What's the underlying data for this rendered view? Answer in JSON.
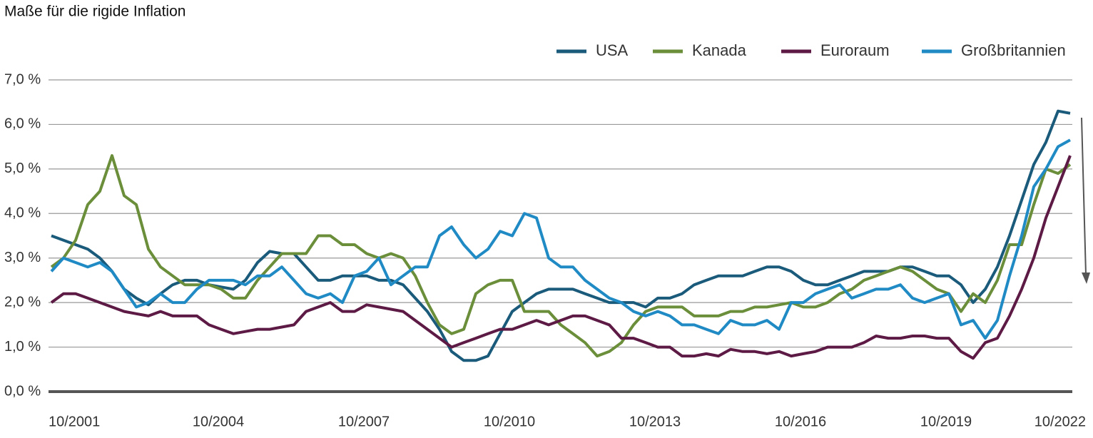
{
  "chart_data": {
    "type": "line",
    "title": "Maße für die rigide Inflation",
    "categories": [
      "10/2001",
      null,
      null,
      null,
      null,
      null,
      null,
      null,
      null,
      null,
      null,
      null,
      "10/2004",
      null,
      null,
      null,
      null,
      null,
      null,
      null,
      null,
      null,
      null,
      null,
      "10/2007",
      null,
      null,
      null,
      null,
      null,
      null,
      null,
      null,
      null,
      null,
      null,
      "10/2010",
      null,
      null,
      null,
      null,
      null,
      null,
      null,
      null,
      null,
      null,
      null,
      "10/2013",
      null,
      null,
      null,
      null,
      null,
      null,
      null,
      null,
      null,
      null,
      null,
      "10/2016",
      null,
      null,
      null,
      null,
      null,
      null,
      null,
      null,
      null,
      null,
      null,
      "10/2019",
      null,
      null,
      null,
      null,
      null,
      null,
      null,
      null,
      null,
      null,
      null,
      "10/2022"
    ],
    "ylim": [
      0,
      7
    ],
    "yticks": [
      {
        "value": 0,
        "label": "0,0 %"
      },
      {
        "value": 1,
        "label": "1,0 %"
      },
      {
        "value": 2,
        "label": "2,0 %"
      },
      {
        "value": 3,
        "label": "3,0 %"
      },
      {
        "value": 4,
        "label": "4,0 %"
      },
      {
        "value": 5,
        "label": "5,0 %"
      },
      {
        "value": 6,
        "label": "6,0 %"
      },
      {
        "value": 7,
        "label": "7,0 %"
      }
    ],
    "grid": true,
    "legend": "top-right",
    "series": [
      {
        "name": "USA",
        "color": "#1a5a7a",
        "values": [
          3.5,
          3.4,
          3.3,
          3.2,
          3.0,
          2.7,
          2.3,
          2.1,
          1.95,
          2.2,
          2.4,
          2.5,
          2.5,
          2.4,
          2.35,
          2.3,
          2.5,
          2.9,
          3.15,
          3.1,
          3.1,
          2.8,
          2.5,
          2.5,
          2.6,
          2.6,
          2.6,
          2.5,
          2.5,
          2.4,
          2.1,
          1.8,
          1.4,
          0.9,
          0.7,
          0.7,
          0.8,
          1.3,
          1.8,
          2.0,
          2.2,
          2.3,
          2.3,
          2.3,
          2.2,
          2.1,
          2.0,
          2.0,
          2.0,
          1.9,
          2.1,
          2.1,
          2.2,
          2.4,
          2.5,
          2.6,
          2.6,
          2.6,
          2.7,
          2.8,
          2.8,
          2.7,
          2.5,
          2.4,
          2.4,
          2.5,
          2.6,
          2.7,
          2.7,
          2.7,
          2.8,
          2.8,
          2.7,
          2.6,
          2.6,
          2.4,
          2.0,
          2.3,
          2.8,
          3.5,
          4.3,
          5.1,
          5.6,
          6.3,
          6.25
        ]
      },
      {
        "name": "Kanada",
        "color": "#6b8e3a",
        "values": [
          2.8,
          3.0,
          3.4,
          4.2,
          4.5,
          5.3,
          4.4,
          4.2,
          3.2,
          2.8,
          2.6,
          2.4,
          2.4,
          2.4,
          2.3,
          2.1,
          2.1,
          2.5,
          2.8,
          3.1,
          3.1,
          3.1,
          3.5,
          3.5,
          3.3,
          3.3,
          3.1,
          3.0,
          3.1,
          3.0,
          2.6,
          2.0,
          1.5,
          1.3,
          1.4,
          2.2,
          2.4,
          2.5,
          2.5,
          1.8,
          1.8,
          1.8,
          1.5,
          1.3,
          1.1,
          0.8,
          0.9,
          1.1,
          1.5,
          1.8,
          1.9,
          1.9,
          1.9,
          1.7,
          1.7,
          1.7,
          1.8,
          1.8,
          1.9,
          1.9,
          1.95,
          2.0,
          1.9,
          1.9,
          2.0,
          2.2,
          2.3,
          2.5,
          2.6,
          2.7,
          2.8,
          2.7,
          2.5,
          2.3,
          2.2,
          1.8,
          2.2,
          2.0,
          2.5,
          3.3,
          3.3,
          4.2,
          5.0,
          4.9,
          5.1
        ]
      },
      {
        "name": "Euroraum",
        "color": "#5c1a45",
        "values": [
          2.0,
          2.2,
          2.2,
          2.1,
          2.0,
          1.9,
          1.8,
          1.75,
          1.7,
          1.8,
          1.7,
          1.7,
          1.7,
          1.5,
          1.4,
          1.3,
          1.35,
          1.4,
          1.4,
          1.45,
          1.5,
          1.8,
          1.9,
          2.0,
          1.8,
          1.8,
          1.95,
          1.9,
          1.85,
          1.8,
          1.6,
          1.4,
          1.2,
          1.0,
          1.1,
          1.2,
          1.3,
          1.4,
          1.4,
          1.5,
          1.6,
          1.5,
          1.6,
          1.7,
          1.7,
          1.6,
          1.5,
          1.2,
          1.2,
          1.1,
          1.0,
          1.0,
          0.8,
          0.8,
          0.85,
          0.8,
          0.95,
          0.9,
          0.9,
          0.85,
          0.9,
          0.8,
          0.85,
          0.9,
          1.0,
          1.0,
          1.0,
          1.1,
          1.25,
          1.2,
          1.2,
          1.25,
          1.25,
          1.2,
          1.2,
          0.9,
          0.75,
          1.1,
          1.2,
          1.7,
          2.3,
          3.0,
          3.9,
          4.6,
          5.3
        ]
      },
      {
        "name": "Großbritannien",
        "color": "#1f8ac4",
        "values": [
          2.7,
          3.0,
          2.9,
          2.8,
          2.9,
          2.7,
          2.3,
          1.9,
          2.0,
          2.2,
          2.0,
          2.0,
          2.3,
          2.5,
          2.5,
          2.5,
          2.4,
          2.6,
          2.6,
          2.8,
          2.5,
          2.2,
          2.1,
          2.2,
          2.0,
          2.6,
          2.7,
          3.0,
          2.4,
          2.6,
          2.8,
          2.8,
          3.5,
          3.7,
          3.3,
          3.0,
          3.2,
          3.6,
          3.5,
          4.0,
          3.9,
          3.0,
          2.8,
          2.8,
          2.5,
          2.3,
          2.1,
          2.0,
          1.8,
          1.7,
          1.8,
          1.7,
          1.5,
          1.5,
          1.4,
          1.3,
          1.6,
          1.5,
          1.5,
          1.6,
          1.4,
          2.0,
          2.0,
          2.2,
          2.3,
          2.4,
          2.1,
          2.2,
          2.3,
          2.3,
          2.4,
          2.1,
          2.0,
          2.1,
          2.2,
          1.5,
          1.6,
          1.2,
          1.6,
          2.6,
          3.5,
          4.6,
          5.0,
          5.5,
          5.65
        ]
      }
    ]
  }
}
